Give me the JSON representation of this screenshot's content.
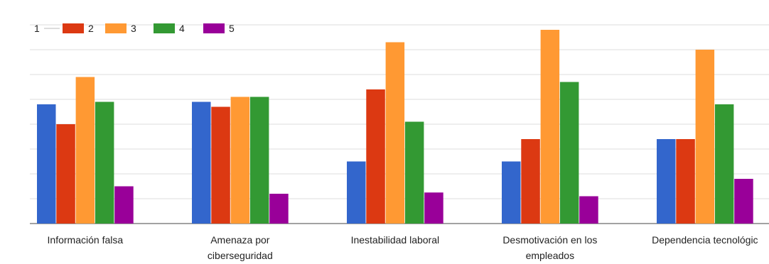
{
  "chart_data": {
    "type": "bar",
    "title": "",
    "xlabel": "",
    "ylabel": "",
    "ylim": [
      0,
      8
    ],
    "grid": true,
    "legend_position": "top-left",
    "categories": [
      [
        "Información falsa"
      ],
      [
        "Amenaza por",
        "ciberseguridad"
      ],
      [
        "Inestabilidad laboral"
      ],
      [
        "Desmotivación en los",
        "empleados"
      ],
      [
        "Dependencia tecnológic"
      ]
    ],
    "series": [
      {
        "name": "1",
        "color": "#3366cc",
        "values": [
          4.8,
          4.9,
          2.5,
          2.5,
          3.4
        ]
      },
      {
        "name": "2",
        "color": "#dc3912",
        "values": [
          4.0,
          4.7,
          5.4,
          3.4,
          3.4
        ]
      },
      {
        "name": "3",
        "color": "#ff9933",
        "values": [
          5.9,
          5.1,
          7.3,
          7.8,
          7.0
        ]
      },
      {
        "name": "4",
        "color": "#339933",
        "values": [
          4.9,
          5.1,
          4.1,
          5.7,
          4.8
        ]
      },
      {
        "name": "5",
        "color": "#990099",
        "values": [
          1.5,
          1.2,
          1.25,
          1.1,
          1.8
        ]
      }
    ]
  }
}
